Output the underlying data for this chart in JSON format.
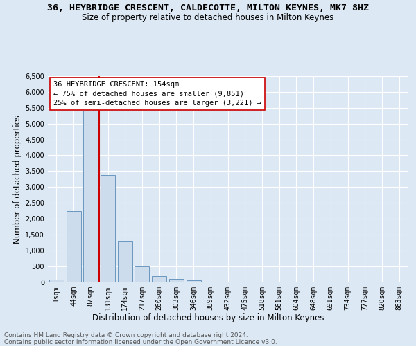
{
  "title": "36, HEYBRIDGE CRESCENT, CALDECOTTE, MILTON KEYNES, MK7 8HZ",
  "subtitle": "Size of property relative to detached houses in Milton Keynes",
  "xlabel": "Distribution of detached houses by size in Milton Keynes",
  "ylabel": "Number of detached properties",
  "footer_line1": "Contains HM Land Registry data © Crown copyright and database right 2024.",
  "footer_line2": "Contains public sector information licensed under the Open Government Licence v3.0.",
  "bar_labels": [
    "1sqm",
    "44sqm",
    "87sqm",
    "131sqm",
    "174sqm",
    "217sqm",
    "260sqm",
    "303sqm",
    "346sqm",
    "389sqm",
    "432sqm",
    "475sqm",
    "518sqm",
    "561sqm",
    "604sqm",
    "648sqm",
    "691sqm",
    "734sqm",
    "777sqm",
    "820sqm",
    "863sqm"
  ],
  "bar_values": [
    75,
    2250,
    5400,
    3380,
    1300,
    500,
    185,
    90,
    50,
    0,
    0,
    0,
    0,
    0,
    0,
    0,
    0,
    0,
    0,
    0,
    0
  ],
  "bar_color": "#ccdcec",
  "bar_edge_color": "#5a8ab8",
  "vline_position": 2.5,
  "vline_color": "#cc0000",
  "ylim_max": 6500,
  "ytick_step": 500,
  "annotation_line1": "36 HEYBRIDGE CRESCENT: 154sqm",
  "annotation_line2": "← 75% of detached houses are smaller (9,851)",
  "annotation_line3": "25% of semi-detached houses are larger (3,221) →",
  "bg_color": "#dce8f4",
  "grid_color": "#ffffff",
  "title_fontsize": 9.5,
  "subtitle_fontsize": 8.5,
  "axis_label_fontsize": 8.5,
  "tick_fontsize": 7,
  "annotation_fontsize": 7.5,
  "footer_fontsize": 6.5
}
